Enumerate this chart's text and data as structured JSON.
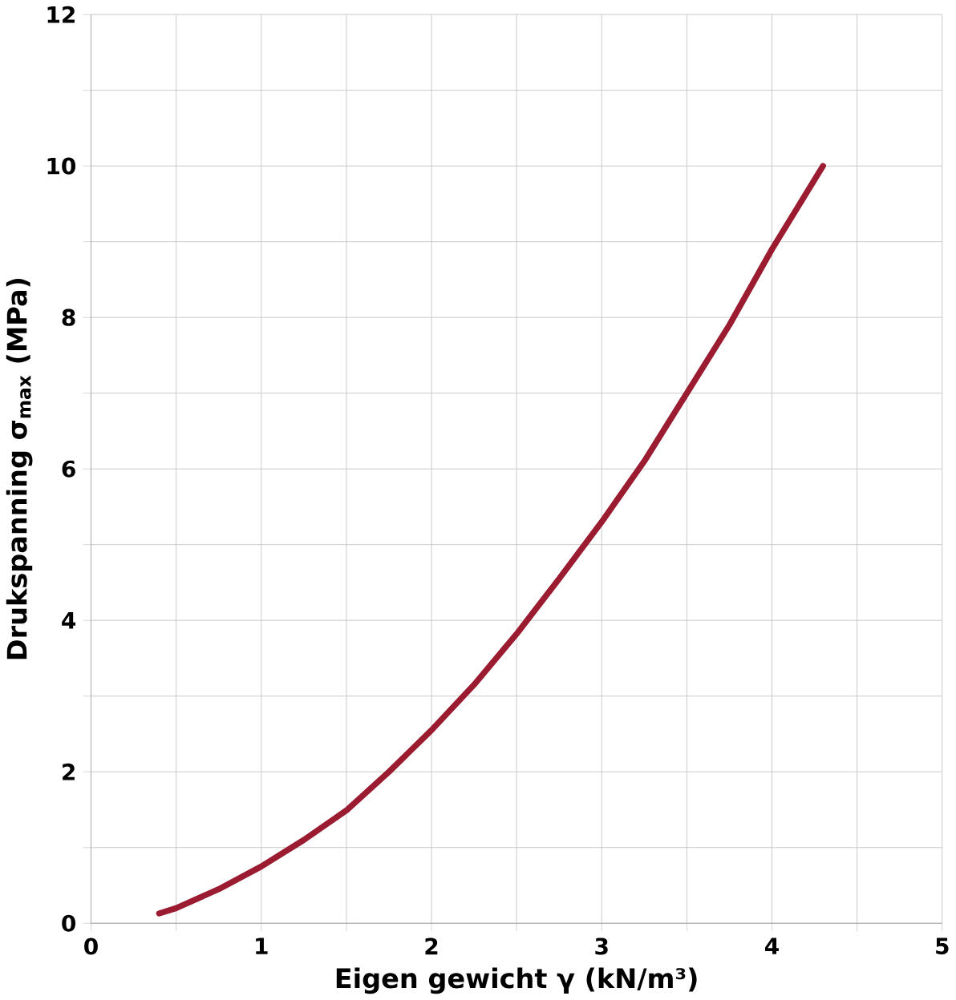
{
  "chart_data": {
    "type": "line",
    "xlabel": "Eigen gewicht γ (kN/m³)",
    "ylabel": "Drukspanning σ$_{max}$ (MPa)",
    "x": [
      0.4,
      0.5,
      0.75,
      1,
      1.25,
      1.5,
      1.75,
      2,
      2.25,
      2.5,
      2.75,
      3,
      3.25,
      3.5,
      3.75,
      4,
      4.15,
      4.3
    ],
    "series": [
      {
        "color": "#9b1b30",
        "values": [
          0.13,
          0.2,
          0.45,
          0.75,
          1.1,
          1.49,
          2.0,
          2.55,
          3.15,
          3.82,
          4.55,
          5.3,
          6.1,
          7.0,
          7.9,
          8.9,
          9.45,
          10.0
        ]
      }
    ],
    "xlim": [
      0,
      5
    ],
    "ylim": [
      0,
      12
    ],
    "xticks": [
      0,
      {
        "value": 0.5,
        "label": null
      },
      1,
      {
        "value": 1.5,
        "label": null
      },
      2,
      {
        "value": 2.5,
        "label": null
      },
      3,
      {
        "value": 3.5,
        "label": null
      },
      4,
      {
        "value": 4.5,
        "label": null
      },
      5
    ],
    "yticks": [
      0,
      {
        "value": 1,
        "label": null
      },
      2,
      {
        "value": 3,
        "label": null
      },
      4,
      {
        "value": 5,
        "label": null
      },
      6,
      {
        "value": 7,
        "label": null
      },
      8,
      {
        "value": 9,
        "label": null
      },
      10,
      {
        "value": 11,
        "label": null
      },
      12
    ],
    "grid": true,
    "marker": "none",
    "line_style": "solid"
  }
}
